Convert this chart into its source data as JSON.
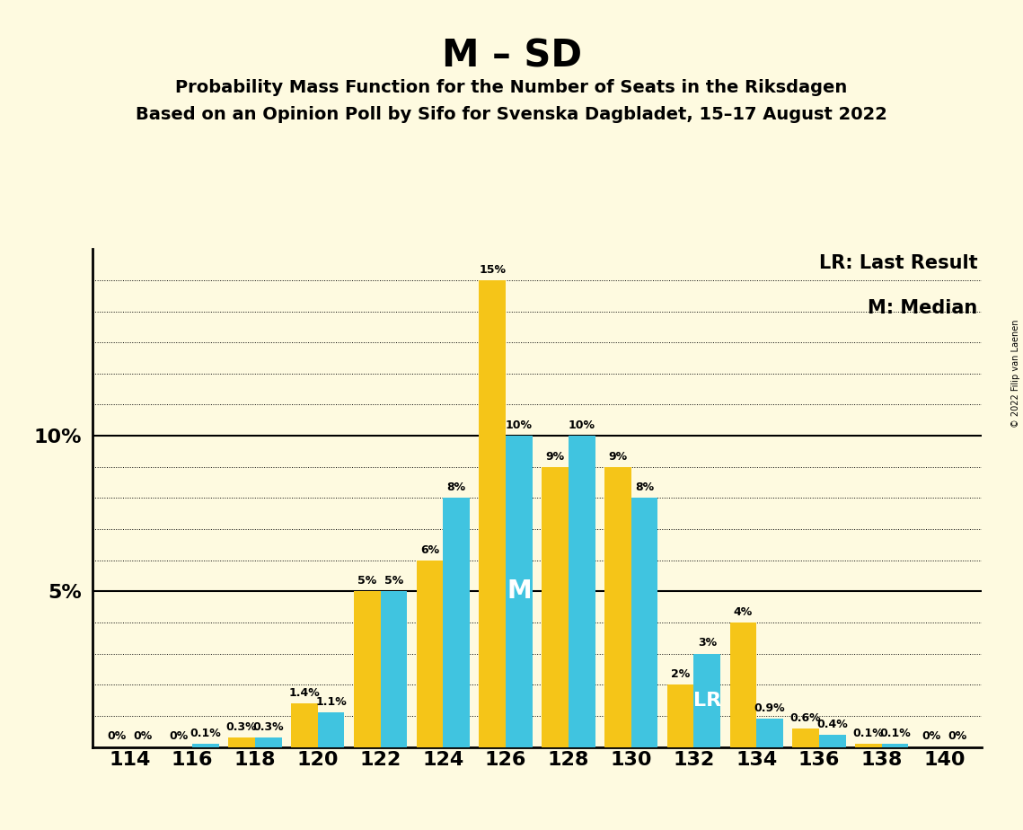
{
  "title": "M – SD",
  "subtitle1": "Probability Mass Function for the Number of Seats in the Riksdagen",
  "subtitle2": "Based on an Opinion Poll by Sifo for Svenska Dagbladet, 15–17 August 2022",
  "copyright": "© 2022 Filip van Laenen",
  "legend_lr": "LR: Last Result",
  "legend_m": "M: Median",
  "seats": [
    114,
    116,
    118,
    120,
    122,
    124,
    126,
    128,
    130,
    132,
    134,
    136,
    138,
    140
  ],
  "blue_values": [
    0.0,
    0.1,
    0.3,
    1.1,
    5.0,
    8.0,
    10.0,
    10.0,
    8.0,
    3.0,
    0.9,
    0.4,
    0.1,
    0.0
  ],
  "yellow_values": [
    0.0,
    0.0,
    0.3,
    1.4,
    5.0,
    6.0,
    15.0,
    9.0,
    9.0,
    2.0,
    4.0,
    0.6,
    0.1,
    0.0
  ],
  "blue_labels": [
    "0%",
    "0.1%",
    "0.3%",
    "1.1%",
    "5%",
    "8%",
    "10%",
    "10%",
    "8%",
    "3%",
    "0.9%",
    "0.4%",
    "0.1%",
    "0%"
  ],
  "yellow_labels": [
    "0%",
    "0%",
    "0.3%",
    "1.4%",
    "5%",
    "6%",
    "15%",
    "9%",
    "9%",
    "2%",
    "4%",
    "0.6%",
    "0.1%",
    "0%"
  ],
  "median_seat": 126,
  "lr_seat": 132,
  "blue_color": "#40C4E0",
  "yellow_color": "#F5C518",
  "background_color": "#FEFAE0",
  "ylim": [
    0,
    16
  ],
  "label_fontsize": 9,
  "tick_fontsize": 16
}
